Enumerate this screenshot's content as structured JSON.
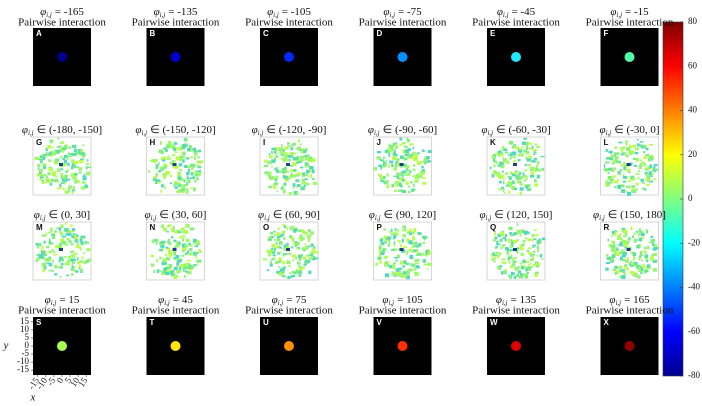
{
  "panels": [
    {
      "letter": "A",
      "symbol": "φ",
      "sub": "i,j",
      "rest": "= -165",
      "subtitle": "Pairwise interaction",
      "color": "#00008f"
    },
    {
      "letter": "B",
      "symbol": "φ",
      "sub": "i,j",
      "rest": "= -135",
      "subtitle": "Pairwise interaction",
      "color": "#0000d0"
    },
    {
      "letter": "C",
      "symbol": "φ",
      "sub": "i,j",
      "rest": "= -105",
      "subtitle": "Pairwise interaction",
      "color": "#0028ff"
    },
    {
      "letter": "D",
      "symbol": "φ",
      "sub": "i,j",
      "rest": "= -75",
      "subtitle": "Pairwise interaction",
      "color": "#0090ff"
    },
    {
      "letter": "E",
      "symbol": "φ",
      "sub": "i,j",
      "rest": "= -45",
      "subtitle": "Pairwise interaction",
      "color": "#20e8ff"
    },
    {
      "letter": "F",
      "symbol": "φ",
      "sub": "i,j",
      "rest": "= -15",
      "subtitle": "Pairwise interaction",
      "color": "#50ffa8"
    },
    {
      "letter": "G",
      "symbol": "φ",
      "sub": "i,j",
      "rest": "∈ (-180, -150]"
    },
    {
      "letter": "H",
      "symbol": "φ",
      "sub": "i,j",
      "rest": "∈ (-150, -120]"
    },
    {
      "letter": "I",
      "symbol": "φ",
      "sub": "i,j",
      "rest": "∈ (-120, -90]"
    },
    {
      "letter": "J",
      "symbol": "φ",
      "sub": "i,j",
      "rest": "∈ (-90, -60]"
    },
    {
      "letter": "K",
      "symbol": "φ",
      "sub": "i,j",
      "rest": "∈ (-60, -30]"
    },
    {
      "letter": "L",
      "symbol": "φ",
      "sub": "i,j",
      "rest": "∈ (-30, 0]"
    },
    {
      "letter": "M",
      "symbol": "φ",
      "sub": "i,j",
      "rest": "∈ (0, 30]"
    },
    {
      "letter": "N",
      "symbol": "φ",
      "sub": "i,j",
      "rest": "∈ (30, 60]"
    },
    {
      "letter": "O",
      "symbol": "φ",
      "sub": "i,j",
      "rest": "∈ (60, 90]"
    },
    {
      "letter": "P",
      "symbol": "φ",
      "sub": "i,j",
      "rest": "∈ (90, 120]"
    },
    {
      "letter": "Q",
      "symbol": "φ",
      "sub": "i,j",
      "rest": "∈ (120, 150]"
    },
    {
      "letter": "R",
      "symbol": "φ",
      "sub": "i,j",
      "rest": "∈ (150, 180]"
    },
    {
      "letter": "S",
      "symbol": "φ",
      "sub": "i,j",
      "rest": "= 15",
      "subtitle": "Pairwise interaction",
      "color": "#a8ff50"
    },
    {
      "letter": "T",
      "symbol": "φ",
      "sub": "i,j",
      "rest": "= 45",
      "subtitle": "Pairwise interaction",
      "color": "#ffe800"
    },
    {
      "letter": "U",
      "symbol": "φ",
      "sub": "i,j",
      "rest": "= 75",
      "subtitle": "Pairwise interaction",
      "color": "#ff9000"
    },
    {
      "letter": "V",
      "symbol": "φ",
      "sub": "i,j",
      "rest": "= 105",
      "subtitle": "Pairwise interaction",
      "color": "#ff3000"
    },
    {
      "letter": "W",
      "symbol": "φ",
      "sub": "i,j",
      "rest": "= 135",
      "subtitle": "Pairwise interaction",
      "color": "#e00000"
    },
    {
      "letter": "X",
      "symbol": "φ",
      "sub": "i,j",
      "rest": "= 165",
      "subtitle": "Pairwise interaction",
      "color": "#900000"
    }
  ],
  "axes": {
    "xlabel": "x",
    "ylabel": "y",
    "xlim": [
      -18,
      18
    ],
    "ylim": [
      -18,
      18
    ],
    "xticks": [
      -15,
      -10,
      -5,
      0,
      5,
      10,
      15
    ],
    "yticks": [
      15,
      10,
      5,
      0,
      -5,
      -10,
      -15
    ]
  },
  "colorbar": {
    "ylim": [
      -80,
      80
    ],
    "yticks": [
      80,
      60,
      40,
      20,
      0,
      -20,
      -40,
      -60,
      -80
    ]
  }
}
